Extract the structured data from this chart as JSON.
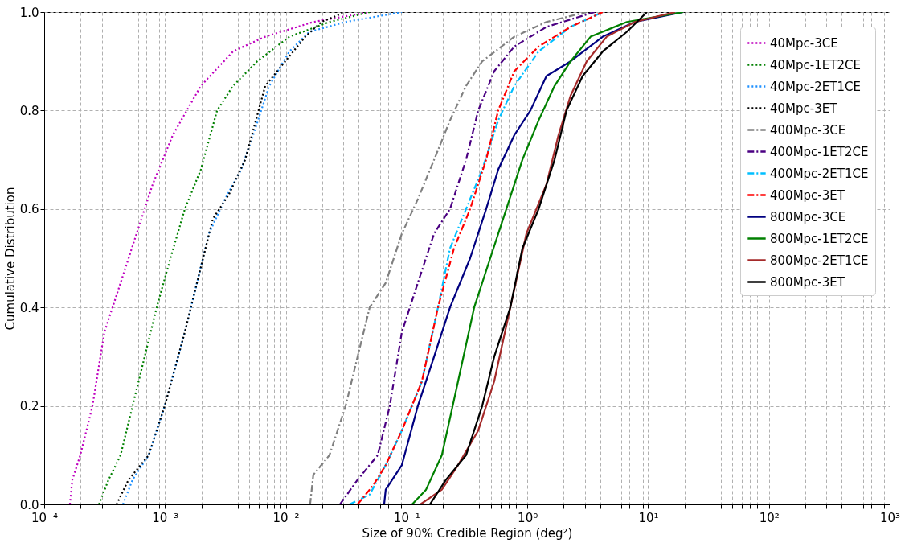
{
  "chart_data": {
    "type": "line",
    "xlabel": "Size of 90% Credible Region (deg²)",
    "ylabel": "Cumulative Distribution",
    "log": "x",
    "grid": true,
    "legend": "top right",
    "xlim": [
      0.0001,
      1000
    ],
    "ylim": [
      0,
      1
    ],
    "xticks": [
      {
        "value": 0.0001,
        "label": "10⁻⁴"
      },
      {
        "value": 0.0002,
        "label": null
      },
      {
        "value": 0.0003,
        "label": null
      },
      {
        "value": 0.0004,
        "label": null
      },
      {
        "value": 0.0005,
        "label": null
      },
      {
        "value": 0.0006,
        "label": null
      },
      {
        "value": 0.0007,
        "label": null
      },
      {
        "value": 0.0008,
        "label": null
      },
      {
        "value": 0.0009,
        "label": null
      },
      {
        "value": 0.001,
        "label": "10⁻³"
      },
      {
        "value": 0.002,
        "label": null
      },
      {
        "value": 0.003,
        "label": null
      },
      {
        "value": 0.004,
        "label": null
      },
      {
        "value": 0.005,
        "label": null
      },
      {
        "value": 0.006,
        "label": null
      },
      {
        "value": 0.007,
        "label": null
      },
      {
        "value": 0.008,
        "label": null
      },
      {
        "value": 0.009,
        "label": null
      },
      {
        "value": 0.01,
        "label": "10⁻²"
      },
      {
        "value": 0.02,
        "label": null
      },
      {
        "value": 0.03,
        "label": null
      },
      {
        "value": 0.04,
        "label": null
      },
      {
        "value": 0.05,
        "label": null
      },
      {
        "value": 0.06,
        "label": null
      },
      {
        "value": 0.07,
        "label": null
      },
      {
        "value": 0.08,
        "label": null
      },
      {
        "value": 0.09,
        "label": null
      },
      {
        "value": 0.1,
        "label": "10⁻¹"
      },
      {
        "value": 0.2,
        "label": null
      },
      {
        "value": 0.3,
        "label": null
      },
      {
        "value": 0.4,
        "label": null
      },
      {
        "value": 0.5,
        "label": null
      },
      {
        "value": 0.6,
        "label": null
      },
      {
        "value": 0.7,
        "label": null
      },
      {
        "value": 0.8,
        "label": null
      },
      {
        "value": 0.9,
        "label": null
      },
      {
        "value": 1,
        "label": "10⁰"
      },
      {
        "value": 2,
        "label": null
      },
      {
        "value": 3,
        "label": null
      },
      {
        "value": 4,
        "label": null
      },
      {
        "value": 5,
        "label": null
      },
      {
        "value": 6,
        "label": null
      },
      {
        "value": 7,
        "label": null
      },
      {
        "value": 8,
        "label": null
      },
      {
        "value": 9,
        "label": null
      },
      {
        "value": 10,
        "label": "10¹"
      },
      {
        "value": 20,
        "label": null
      },
      {
        "value": 30,
        "label": null
      },
      {
        "value": 40,
        "label": null
      },
      {
        "value": 50,
        "label": null
      },
      {
        "value": 60,
        "label": null
      },
      {
        "value": 70,
        "label": null
      },
      {
        "value": 80,
        "label": null
      },
      {
        "value": 90,
        "label": null
      },
      {
        "value": 100,
        "label": "10²"
      },
      {
        "value": 200,
        "label": null
      },
      {
        "value": 300,
        "label": null
      },
      {
        "value": 400,
        "label": null
      },
      {
        "value": 500,
        "label": null
      },
      {
        "value": 600,
        "label": null
      },
      {
        "value": 700,
        "label": null
      },
      {
        "value": 800,
        "label": null
      },
      {
        "value": 900,
        "label": null
      },
      {
        "value": 1000,
        "label": "10³"
      }
    ],
    "yticks": [
      {
        "value": 0,
        "label": "0.0"
      },
      0.2,
      0.4,
      0.6,
      0.8,
      {
        "value": 1,
        "label": "1.0"
      }
    ],
    "series": [
      {
        "name": "40Mpc-3CE",
        "color": "#bf00bf",
        "line_style": "dotted",
        "x": [
          0.000163,
          0.000171,
          0.000199,
          0.000251,
          0.000315,
          0.000429,
          0.000582,
          0.000791,
          0.00116,
          0.00198,
          0.00366,
          0.00676,
          0.0169,
          0.0495
        ],
        "values": [
          0,
          0.05,
          0.1,
          0.2,
          0.35,
          0.45,
          0.55,
          0.65,
          0.75,
          0.85,
          0.92,
          0.95,
          0.98,
          1
        ]
      },
      {
        "name": "40Mpc-1ET2CE",
        "color": "#008000",
        "line_style": "dotted",
        "x": [
          0.000284,
          0.000341,
          0.000429,
          0.000539,
          0.000679,
          0.000854,
          0.00111,
          0.00146,
          0.00198,
          0.0027,
          0.00366,
          0.0058,
          0.0107,
          0.023,
          0.0495
        ],
        "values": [
          0,
          0.05,
          0.1,
          0.2,
          0.3,
          0.4,
          0.5,
          0.6,
          0.68,
          0.8,
          0.85,
          0.9,
          0.95,
          0.98,
          1
        ]
      },
      {
        "name": "40Mpc-2ET1CE",
        "color": "#1e90ff",
        "line_style": "dotted",
        "x": [
          0.000449,
          0.000539,
          0.000733,
          0.000995,
          0.00146,
          0.00184,
          0.00231,
          0.00314,
          0.00427,
          0.00537,
          0.0073,
          0.0107,
          0.0157,
          0.0313,
          0.0914
        ],
        "values": [
          0,
          0.05,
          0.1,
          0.2,
          0.35,
          0.45,
          0.55,
          0.62,
          0.68,
          0.75,
          0.85,
          0.92,
          0.96,
          0.98,
          1
        ]
      },
      {
        "name": "40Mpc-3ET",
        "color": "#000000",
        "line_style": "dotted",
        "x": [
          0.000397,
          0.000499,
          0.000733,
          0.000995,
          0.00146,
          0.00184,
          0.00249,
          0.00339,
          0.00461,
          0.00676,
          0.00991,
          0.0145,
          0.0197,
          0.0313
        ],
        "values": [
          0,
          0.05,
          0.1,
          0.2,
          0.35,
          0.45,
          0.58,
          0.63,
          0.7,
          0.85,
          0.9,
          0.95,
          0.98,
          1
        ]
      },
      {
        "name": "400Mpc-3CE",
        "color": "#808080",
        "line_style": "dashdot",
        "x": [
          0.0159,
          0.0169,
          0.023,
          0.0313,
          0.0393,
          0.0495,
          0.0672,
          0.0914,
          0.124,
          0.169,
          0.229,
          0.311,
          0.423,
          0.78,
          1.44,
          3.1
        ],
        "values": [
          0,
          0.06,
          0.1,
          0.2,
          0.3,
          0.4,
          0.45,
          0.55,
          0.62,
          0.7,
          0.78,
          0.85,
          0.9,
          0.95,
          0.98,
          1
        ]
      },
      {
        "name": "400Mpc-1ET2CE",
        "color": "#4b0082",
        "line_style": "dashdot",
        "x": [
          0.0281,
          0.0393,
          0.0577,
          0.0726,
          0.0914,
          0.124,
          0.169,
          0.229,
          0.311,
          0.392,
          0.532,
          0.78,
          1.44,
          3.61
        ],
        "values": [
          0,
          0.05,
          0.1,
          0.2,
          0.35,
          0.45,
          0.55,
          0.6,
          0.7,
          0.8,
          0.88,
          0.93,
          0.97,
          1
        ]
      },
      {
        "name": "400Mpc-2ET1CE",
        "color": "#00bfff",
        "line_style": "dashdot",
        "x": [
          0.0337,
          0.0495,
          0.0672,
          0.0914,
          0.134,
          0.182,
          0.229,
          0.311,
          0.423,
          0.574,
          0.78,
          1.24,
          2.28,
          4.21
        ],
        "values": [
          0,
          0.02,
          0.08,
          0.15,
          0.25,
          0.4,
          0.52,
          0.6,
          0.68,
          0.78,
          0.85,
          0.92,
          0.97,
          1
        ]
      },
      {
        "name": "400Mpc-3ET",
        "color": "#ff0000",
        "line_style": "dashdot",
        "x": [
          0.0393,
          0.0534,
          0.0672,
          0.0914,
          0.134,
          0.182,
          0.247,
          0.336,
          0.456,
          0.574,
          0.78,
          1.24,
          2.28,
          4.21
        ],
        "values": [
          0,
          0.04,
          0.08,
          0.15,
          0.25,
          0.4,
          0.52,
          0.6,
          0.7,
          0.8,
          0.88,
          0.93,
          0.97,
          1
        ]
      },
      {
        "name": "800Mpc-3CE",
        "color": "#000080",
        "line_style": "solid",
        "x": [
          0.0652,
          0.0672,
          0.0914,
          0.124,
          0.169,
          0.229,
          0.336,
          0.456,
          0.574,
          0.78,
          1.06,
          1.44,
          2.28,
          4.21,
          7.77,
          19.5
        ],
        "values": [
          0,
          0.03,
          0.08,
          0.2,
          0.3,
          0.4,
          0.5,
          0.6,
          0.68,
          0.75,
          0.8,
          0.87,
          0.9,
          0.95,
          0.98,
          1
        ]
      },
      {
        "name": "800Mpc-1ET2CE",
        "color": "#008000",
        "line_style": "solid",
        "x": [
          0.111,
          0.145,
          0.196,
          0.267,
          0.363,
          0.493,
          0.67,
          0.91,
          1.24,
          1.68,
          2.28,
          3.34,
          6.67,
          19.5
        ],
        "values": [
          0,
          0.03,
          0.1,
          0.25,
          0.4,
          0.5,
          0.6,
          0.7,
          0.78,
          0.85,
          0.9,
          0.95,
          0.98,
          1
        ]
      },
      {
        "name": "800Mpc-2ET1CE",
        "color": "#a52a2a",
        "line_style": "solid",
        "x": [
          0.13,
          0.196,
          0.267,
          0.392,
          0.532,
          0.723,
          0.982,
          1.44,
          1.81,
          2.28,
          3.1,
          4.54,
          7.77,
          16.7
        ],
        "values": [
          0,
          0.03,
          0.08,
          0.15,
          0.25,
          0.4,
          0.55,
          0.65,
          0.75,
          0.83,
          0.9,
          0.95,
          0.98,
          1
        ]
      },
      {
        "name": "800Mpc-3ET",
        "color": "#000000",
        "line_style": "solid",
        "x": [
          0.156,
          0.212,
          0.311,
          0.423,
          0.532,
          0.723,
          0.91,
          1.24,
          1.68,
          2.11,
          2.87,
          4.21,
          6.67,
          9.77
        ],
        "values": [
          0,
          0.05,
          0.1,
          0.2,
          0.3,
          0.4,
          0.52,
          0.6,
          0.7,
          0.8,
          0.87,
          0.92,
          0.96,
          1
        ]
      }
    ]
  }
}
